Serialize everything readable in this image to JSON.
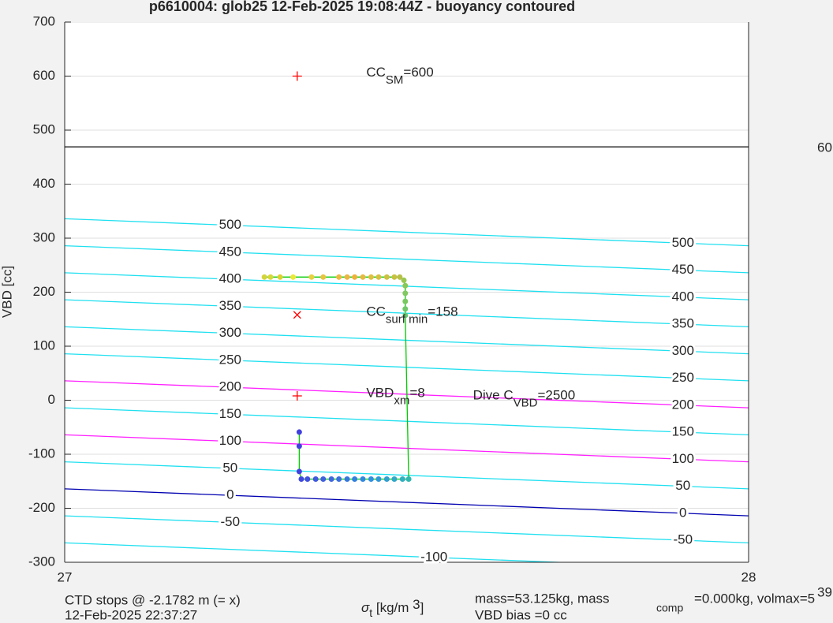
{
  "chart_data": {
    "type": "scatter",
    "title": "p6610004: glob25 12-Feb-2025 19:08:44Z - buoyancy contoured",
    "ylabel": "VBD [cc]",
    "xlabel": {
      "symbol": "σ",
      "sub": "t",
      "unit": " [kg/m ",
      "sup": "3",
      "close": "]"
    },
    "xlim": [
      27,
      28
    ],
    "xticks": [
      27,
      28
    ],
    "ylim": [
      -300,
      700
    ],
    "yticks": [
      -300,
      -200,
      -100,
      0,
      100,
      200,
      300,
      400,
      500,
      600,
      700
    ],
    "grid": true,
    "x": [
      27.292,
      27.301,
      27.315,
      27.334,
      27.361,
      27.378,
      27.401,
      27.413,
      27.424,
      27.436,
      27.448,
      27.459,
      27.471,
      27.482,
      27.49,
      27.496,
      27.498,
      27.498,
      27.498,
      27.498,
      27.498,
      27.503,
      27.494,
      27.482,
      27.471,
      27.459,
      27.448,
      27.436,
      27.424,
      27.413,
      27.401,
      27.39,
      27.378,
      27.367,
      27.355,
      27.346,
      27.343,
      27.343,
      27.343
    ],
    "values": [
      228,
      228,
      228,
      228,
      228,
      228,
      228,
      228,
      228,
      228,
      228,
      228,
      228,
      228,
      228,
      222,
      212,
      198,
      183,
      169,
      157,
      -146,
      -146,
      -146,
      -146,
      -146,
      -146,
      -146,
      -146,
      -146,
      -146,
      -146,
      -146,
      -146,
      -146,
      -146,
      -132,
      -85,
      -59
    ],
    "point_colors": [
      "#d4d43a",
      "#d8d838",
      "#e0d030",
      "#ece838",
      "#e8d040",
      "#e8c440",
      "#f0b840",
      "#f0b440",
      "#f0b038",
      "#e8b840",
      "#e0c040",
      "#d8c040",
      "#d0c040",
      "#c8c040",
      "#b8c048",
      "#98c850",
      "#88c858",
      "#80c860",
      "#78c860",
      "#70c868",
      "#68c870",
      "#30b8b0",
      "#30b0c0",
      "#30a8c8",
      "#30a0d0",
      "#3098d8",
      "#3090e0",
      "#3088e0",
      "#3080e0",
      "#3578e0",
      "#3a70e0",
      "#3e68e0",
      "#4060e0",
      "#4058e0",
      "#4050e0",
      "#4048e0",
      "#4040e0",
      "#4040e0",
      "#4040e0"
    ],
    "line_color": "#00cc00",
    "hline": {
      "value": 469,
      "color": "#000000"
    },
    "contours": [
      {
        "level": 500,
        "y": [
          336,
          286
        ],
        "color": "#20e0f0"
      },
      {
        "level": 450,
        "y": [
          286,
          236
        ],
        "color": "#20e0f0"
      },
      {
        "level": 400,
        "y": [
          236,
          186
        ],
        "color": "#20e0f0"
      },
      {
        "level": 350,
        "y": [
          186,
          136
        ],
        "color": "#20e0f0"
      },
      {
        "level": 300,
        "y": [
          136,
          86
        ],
        "color": "#20e0f0"
      },
      {
        "level": 250,
        "y": [
          86,
          36
        ],
        "color": "#20e0f0"
      },
      {
        "level": 200,
        "y": [
          36,
          -14
        ],
        "color": "#ff20ff"
      },
      {
        "level": 150,
        "y": [
          -14,
          -64
        ],
        "color": "#20e0f0"
      },
      {
        "level": 100,
        "y": [
          -64,
          -114
        ],
        "color": "#ff20ff"
      },
      {
        "level": 50,
        "y": [
          -114,
          -164
        ],
        "color": "#20e0f0"
      },
      {
        "level": 0,
        "y": [
          -164,
          -214
        ],
        "color": "#0000b0"
      },
      {
        "level": -50,
        "y": [
          -214,
          -264
        ],
        "color": "#20e0f0"
      },
      {
        "level": -100,
        "y": [
          -264,
          -314
        ],
        "color": "#20e0f0"
      }
    ],
    "markers": [
      {
        "x": 27.34,
        "y": 600,
        "symbol": "+",
        "color": "#ff0000"
      },
      {
        "x": 27.34,
        "y": 158,
        "symbol": "x",
        "color": "#ff0000"
      },
      {
        "x": 27.34,
        "y": 8,
        "symbol": "+",
        "color": "#ff0000"
      }
    ],
    "annotations": [
      {
        "x": 27.441,
        "y": 605,
        "text": "CC",
        "sub": "SM",
        "rest": "=600"
      },
      {
        "x": 27.441,
        "y": 162,
        "text": "CC",
        "sub": "surf min",
        "rest": "=158"
      },
      {
        "x": 27.441,
        "y": 12,
        "text": "VBD",
        "sub": "xm",
        "rest": "=8"
      },
      {
        "x": 27.597,
        "y": 7,
        "text": "Dive C",
        "sub": "VBD",
        "rest": "=2500"
      }
    ],
    "right_label": "60",
    "footer": {
      "ctd": "CTD stops @ -2.1782 m (= x)",
      "date": "12-Feb-2025 22:37:27",
      "mass": "mass=53.125kg, mass",
      "comp": "comp",
      "volmax": "=0.000kg, volmax=5",
      "cut": "39",
      "bias": "VBD bias =0 cc"
    }
  }
}
